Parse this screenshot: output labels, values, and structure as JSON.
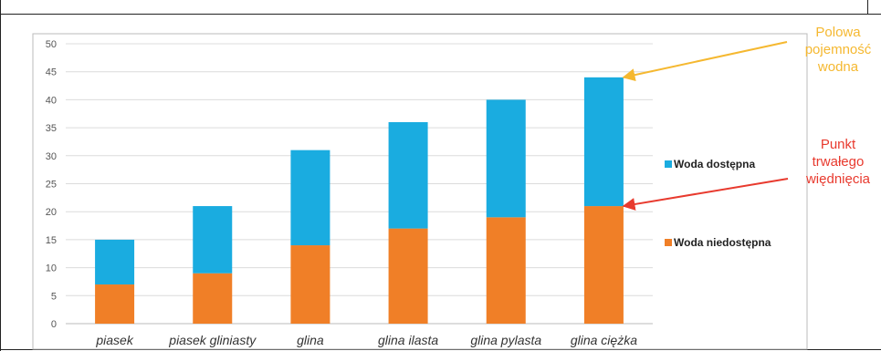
{
  "chart_data": {
    "type": "bar",
    "stacked": true,
    "categories": [
      "piasek",
      "piasek gliniasty",
      "glina",
      "glina ilasta",
      "glina pylasta",
      "glina ciężka"
    ],
    "series": [
      {
        "name": "Woda niedostępna",
        "values": [
          7,
          9,
          14,
          17,
          19,
          21
        ],
        "color": "#f07f27"
      },
      {
        "name": "Woda dostępna",
        "values": [
          8,
          12,
          17,
          19,
          21,
          23
        ],
        "color": "#1aace0"
      }
    ],
    "ylim": [
      0,
      50
    ],
    "yticks": [
      0,
      5,
      10,
      15,
      20,
      25,
      30,
      35,
      40,
      45,
      50
    ],
    "grid": true,
    "legend_position": "right",
    "annotations": [
      {
        "lines": [
          "Polowa",
          "pojemność",
          "wodna"
        ],
        "color": "#f5b830",
        "points_to_category": 5,
        "points_to_value": 44
      },
      {
        "lines": [
          "Punkt",
          "trwałego",
          "więdnięcia"
        ],
        "color": "#e83a2e",
        "points_to_category": 5,
        "points_to_value": 21
      }
    ]
  }
}
